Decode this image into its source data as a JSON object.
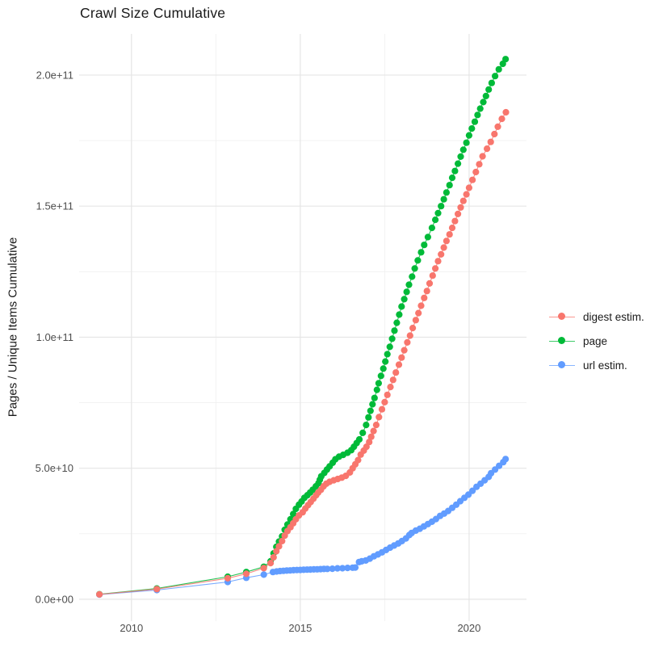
{
  "chart_data": {
    "type": "scatter",
    "title": "Crawl Size Cumulative",
    "xlabel": "",
    "ylabel": "Pages / Unique Items Cumulative",
    "grid": true,
    "legend_position": "right-center",
    "xlim": [
      2008.45,
      2021.7
    ],
    "ylim_billions": [
      -8.35,
      215.7
    ],
    "x_major_ticks": [
      2010,
      2015,
      2020
    ],
    "x_major_labels": [
      "2010",
      "2015",
      "2020"
    ],
    "x_minor_ticks": [
      2012.5,
      2017.5
    ],
    "y_major_ticks_billions": [
      0,
      50,
      100,
      150,
      200
    ],
    "y_major_labels": [
      "0.0e+00",
      "5.0e+10",
      "1.0e+11",
      "1.5e+11",
      "2.0e+11"
    ],
    "y_minor_ticks_billions": [
      25,
      75,
      125,
      175
    ],
    "draw_order": [
      1,
      2,
      0
    ],
    "colors": {
      "digest": "#F8766D",
      "page": "#00BA38",
      "url": "#619CFF",
      "grid_major": "#E5E5E5",
      "grid_minor": "#F0F0F0",
      "tick_text": "#4D4D4D"
    },
    "series": [
      {
        "name": "digest estim.",
        "color": "#F8766D",
        "points_year_billions": [
          [
            2009.05,
            1.85
          ],
          [
            2010.75,
            3.9
          ],
          [
            2012.85,
            8.0
          ],
          [
            2013.4,
            9.7
          ],
          [
            2013.92,
            11.9
          ],
          [
            2014.12,
            13.8
          ],
          [
            2014.21,
            16.0
          ],
          [
            2014.29,
            18.3
          ],
          [
            2014.37,
            20.2
          ],
          [
            2014.46,
            22.2
          ],
          [
            2014.54,
            24.3
          ],
          [
            2014.62,
            26.0
          ],
          [
            2014.71,
            27.5
          ],
          [
            2014.79,
            29.0
          ],
          [
            2014.87,
            30.5
          ],
          [
            2014.96,
            32.0
          ],
          [
            2015.07,
            33.2
          ],
          [
            2015.15,
            34.6
          ],
          [
            2015.23,
            35.9
          ],
          [
            2015.31,
            37.1
          ],
          [
            2015.39,
            38.4
          ],
          [
            2015.47,
            39.7
          ],
          [
            2015.53,
            40.7
          ],
          [
            2015.61,
            41.8
          ],
          [
            2015.69,
            43.1
          ],
          [
            2015.77,
            44.1
          ],
          [
            2015.87,
            44.8
          ],
          [
            2015.99,
            45.4
          ],
          [
            2016.11,
            45.9
          ],
          [
            2016.23,
            46.4
          ],
          [
            2016.35,
            47.1
          ],
          [
            2016.47,
            48.4
          ],
          [
            2016.55,
            50.0
          ],
          [
            2016.63,
            51.5
          ],
          [
            2016.71,
            53.1
          ],
          [
            2016.79,
            55.2
          ],
          [
            2016.88,
            56.7
          ],
          [
            2016.96,
            58.2
          ],
          [
            2017.04,
            60.0
          ],
          [
            2017.1,
            62.0
          ],
          [
            2017.17,
            64.2
          ],
          [
            2017.25,
            66.5
          ],
          [
            2017.33,
            69.5
          ],
          [
            2017.42,
            72.5
          ],
          [
            2017.5,
            75.2
          ],
          [
            2017.58,
            78.0
          ],
          [
            2017.67,
            81.0
          ],
          [
            2017.75,
            83.7
          ],
          [
            2017.83,
            86.5
          ],
          [
            2017.92,
            89.5
          ],
          [
            2018.0,
            92.2
          ],
          [
            2018.08,
            95.0
          ],
          [
            2018.17,
            98.0
          ],
          [
            2018.25,
            100.6
          ],
          [
            2018.33,
            103.5
          ],
          [
            2018.42,
            106.5
          ],
          [
            2018.5,
            109.2
          ],
          [
            2018.58,
            112.0
          ],
          [
            2018.67,
            115.0
          ],
          [
            2018.75,
            117.6
          ],
          [
            2018.83,
            120.5
          ],
          [
            2018.92,
            123.5
          ],
          [
            2019.0,
            126.2
          ],
          [
            2019.08,
            129.0
          ],
          [
            2019.17,
            131.6
          ],
          [
            2019.25,
            134.2
          ],
          [
            2019.33,
            136.7
          ],
          [
            2019.42,
            139.2
          ],
          [
            2019.5,
            141.7
          ],
          [
            2019.58,
            144.3
          ],
          [
            2019.67,
            147.0
          ],
          [
            2019.75,
            149.5
          ],
          [
            2019.83,
            152.0
          ],
          [
            2019.92,
            154.5
          ],
          [
            2020.0,
            157.0
          ],
          [
            2020.1,
            160.0
          ],
          [
            2020.2,
            163.0
          ],
          [
            2020.3,
            166.0
          ],
          [
            2020.4,
            169.0
          ],
          [
            2020.53,
            171.9
          ],
          [
            2020.64,
            174.5
          ],
          [
            2020.75,
            177.5
          ],
          [
            2020.85,
            180.3
          ],
          [
            2020.97,
            183.3
          ],
          [
            2021.09,
            185.8
          ]
        ]
      },
      {
        "name": "page",
        "color": "#00BA38",
        "points_year_billions": [
          [
            2009.05,
            1.9
          ],
          [
            2010.75,
            4.1
          ],
          [
            2012.85,
            8.6
          ],
          [
            2013.4,
            10.4
          ],
          [
            2013.92,
            12.4
          ],
          [
            2014.12,
            14.5
          ],
          [
            2014.21,
            17.5
          ],
          [
            2014.29,
            20.0
          ],
          [
            2014.37,
            22.0
          ],
          [
            2014.46,
            24.0
          ],
          [
            2014.54,
            26.5
          ],
          [
            2014.62,
            28.5
          ],
          [
            2014.71,
            30.5
          ],
          [
            2014.79,
            32.5
          ],
          [
            2014.87,
            34.5
          ],
          [
            2014.96,
            36.1
          ],
          [
            2015.04,
            37.3
          ],
          [
            2015.12,
            38.7
          ],
          [
            2015.21,
            39.7
          ],
          [
            2015.29,
            40.7
          ],
          [
            2015.37,
            41.8
          ],
          [
            2015.46,
            43.1
          ],
          [
            2015.54,
            44.3
          ],
          [
            2015.58,
            45.6
          ],
          [
            2015.62,
            46.9
          ],
          [
            2015.71,
            48.2
          ],
          [
            2015.79,
            49.5
          ],
          [
            2015.87,
            50.7
          ],
          [
            2015.96,
            52.1
          ],
          [
            2016.04,
            53.4
          ],
          [
            2016.15,
            54.4
          ],
          [
            2016.27,
            55.1
          ],
          [
            2016.4,
            55.9
          ],
          [
            2016.51,
            56.9
          ],
          [
            2016.59,
            58.2
          ],
          [
            2016.67,
            59.6
          ],
          [
            2016.75,
            61.0
          ],
          [
            2016.85,
            63.5
          ],
          [
            2016.95,
            66.5
          ],
          [
            2017.02,
            69.4
          ],
          [
            2017.08,
            71.9
          ],
          [
            2017.14,
            74.4
          ],
          [
            2017.2,
            76.8
          ],
          [
            2017.27,
            79.9
          ],
          [
            2017.32,
            82.4
          ],
          [
            2017.39,
            85.2
          ],
          [
            2017.46,
            88.0
          ],
          [
            2017.52,
            90.7
          ],
          [
            2017.58,
            93.5
          ],
          [
            2017.65,
            96.3
          ],
          [
            2017.72,
            99.4
          ],
          [
            2017.79,
            102.5
          ],
          [
            2017.86,
            105.5
          ],
          [
            2017.93,
            108.6
          ],
          [
            2018.0,
            111.7
          ],
          [
            2018.08,
            114.5
          ],
          [
            2018.15,
            117.3
          ],
          [
            2018.22,
            120.0
          ],
          [
            2018.31,
            123.1
          ],
          [
            2018.39,
            126.2
          ],
          [
            2018.48,
            129.3
          ],
          [
            2018.58,
            132.4
          ],
          [
            2018.67,
            135.2
          ],
          [
            2018.78,
            138.2
          ],
          [
            2018.9,
            141.7
          ],
          [
            2019.0,
            144.8
          ],
          [
            2019.08,
            147.3
          ],
          [
            2019.17,
            150.0
          ],
          [
            2019.25,
            152.6
          ],
          [
            2019.33,
            155.2
          ],
          [
            2019.42,
            158.0
          ],
          [
            2019.5,
            160.8
          ],
          [
            2019.58,
            163.4
          ],
          [
            2019.67,
            166.2
          ],
          [
            2019.75,
            168.9
          ],
          [
            2019.83,
            171.5
          ],
          [
            2019.92,
            174.2
          ],
          [
            2020.0,
            177.0
          ],
          [
            2020.08,
            179.6
          ],
          [
            2020.17,
            182.2
          ],
          [
            2020.25,
            184.8
          ],
          [
            2020.33,
            187.2
          ],
          [
            2020.42,
            189.7
          ],
          [
            2020.5,
            192.0
          ],
          [
            2020.58,
            194.5
          ],
          [
            2020.67,
            197.0
          ],
          [
            2020.77,
            199.6
          ],
          [
            2020.88,
            202.2
          ],
          [
            2021.0,
            204.3
          ],
          [
            2021.08,
            206.1
          ]
        ]
      },
      {
        "name": "url estim.",
        "color": "#619CFF",
        "points_year_billions": [
          [
            2009.05,
            1.8
          ],
          [
            2010.75,
            3.5
          ],
          [
            2012.85,
            6.6
          ],
          [
            2013.4,
            8.2
          ],
          [
            2013.92,
            9.4
          ],
          [
            2014.19,
            10.4
          ],
          [
            2014.3,
            10.6
          ],
          [
            2014.4,
            10.75
          ],
          [
            2014.5,
            10.85
          ],
          [
            2014.6,
            10.95
          ],
          [
            2014.7,
            11.0
          ],
          [
            2014.8,
            11.1
          ],
          [
            2014.9,
            11.15
          ],
          [
            2015.0,
            11.2
          ],
          [
            2015.1,
            11.25
          ],
          [
            2015.2,
            11.3
          ],
          [
            2015.3,
            11.35
          ],
          [
            2015.4,
            11.4
          ],
          [
            2015.5,
            11.45
          ],
          [
            2015.6,
            11.5
          ],
          [
            2015.7,
            11.55
          ],
          [
            2015.8,
            11.6
          ],
          [
            2015.95,
            11.65
          ],
          [
            2016.1,
            11.8
          ],
          [
            2016.25,
            11.85
          ],
          [
            2016.4,
            11.95
          ],
          [
            2016.55,
            12.05
          ],
          [
            2016.63,
            12.1
          ],
          [
            2016.74,
            14.2
          ],
          [
            2016.82,
            14.5
          ],
          [
            2016.94,
            14.8
          ],
          [
            2017.06,
            15.5
          ],
          [
            2017.18,
            16.4
          ],
          [
            2017.3,
            17.1
          ],
          [
            2017.42,
            17.9
          ],
          [
            2017.54,
            18.8
          ],
          [
            2017.66,
            19.7
          ],
          [
            2017.78,
            20.5
          ],
          [
            2017.9,
            21.3
          ],
          [
            2018.01,
            22.2
          ],
          [
            2018.13,
            23.2
          ],
          [
            2018.23,
            24.5
          ],
          [
            2018.3,
            25.3
          ],
          [
            2018.42,
            26.2
          ],
          [
            2018.54,
            26.9
          ],
          [
            2018.66,
            27.8
          ],
          [
            2018.78,
            28.7
          ],
          [
            2018.9,
            29.6
          ],
          [
            2019.02,
            30.6
          ],
          [
            2019.14,
            31.8
          ],
          [
            2019.26,
            32.7
          ],
          [
            2019.38,
            33.7
          ],
          [
            2019.5,
            34.9
          ],
          [
            2019.62,
            36.1
          ],
          [
            2019.74,
            37.4
          ],
          [
            2019.86,
            38.7
          ],
          [
            2019.98,
            39.9
          ],
          [
            2020.1,
            41.4
          ],
          [
            2020.22,
            42.9
          ],
          [
            2020.34,
            44.1
          ],
          [
            2020.46,
            45.4
          ],
          [
            2020.58,
            46.7
          ],
          [
            2020.65,
            48.1
          ],
          [
            2020.77,
            49.5
          ],
          [
            2020.89,
            50.9
          ],
          [
            2021.01,
            52.3
          ],
          [
            2021.08,
            53.5
          ]
        ]
      }
    ]
  }
}
